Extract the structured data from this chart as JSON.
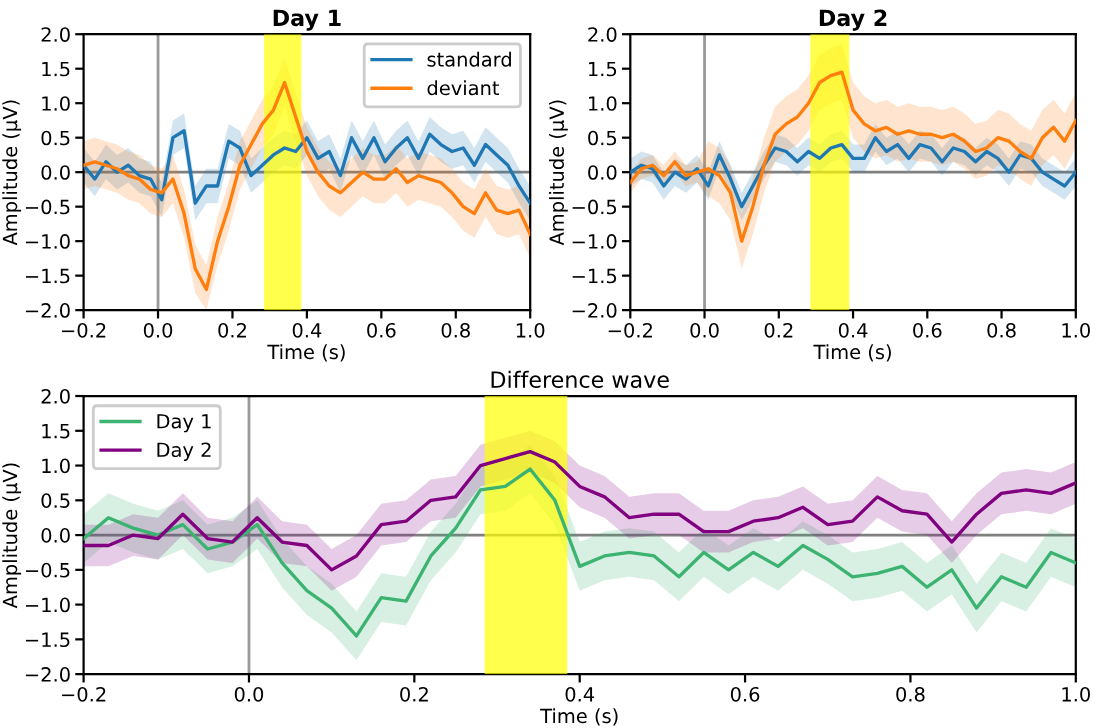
{
  "chart_data": [
    {
      "type": "line",
      "title": "Day 1",
      "xlabel": "Time (s)",
      "ylabel": "Amplitude (µV)",
      "xlim": [
        -0.2,
        1.0
      ],
      "ylim": [
        -2.0,
        2.0
      ],
      "xticks": [
        {
          "value": -0.2,
          "label": "−0.2"
        },
        {
          "value": 0,
          "label": "0.0"
        },
        0.2,
        0.4,
        0.6,
        0.8,
        {
          "value": 1,
          "label": "1.0"
        }
      ],
      "yticks": [
        {
          "value": -2.0,
          "label": "−2.0"
        },
        {
          "value": -1.5,
          "label": "−1.5"
        },
        {
          "value": -1.0,
          "label": "−1.0"
        },
        {
          "value": -0.5,
          "label": "−0.5"
        },
        {
          "value": 0,
          "label": "0.0"
        },
        {
          "value": 0.5,
          "label": "0.5"
        },
        {
          "value": 1,
          "label": "1.0"
        },
        {
          "value": 1.5,
          "label": "1.5"
        },
        {
          "value": 2,
          "label": "2.0"
        }
      ],
      "grid": false,
      "legend": "top right",
      "x": [
        -0.2,
        -0.17,
        -0.14,
        -0.11,
        -0.08,
        -0.05,
        -0.02,
        0.01,
        0.04,
        0.07,
        0.1,
        0.13,
        0.16,
        0.19,
        0.22,
        0.25,
        0.28,
        0.31,
        0.34,
        0.37,
        0.4,
        0.43,
        0.46,
        0.49,
        0.52,
        0.55,
        0.58,
        0.61,
        0.64,
        0.67,
        0.7,
        0.73,
        0.76,
        0.79,
        0.82,
        0.85,
        0.88,
        0.91,
        0.94,
        0.97,
        1.0
      ],
      "bands": [
        {
          "axis": "x",
          "from": 0.285,
          "to": 0.385,
          "color": "#ffff00"
        }
      ],
      "ref_lines": [
        {
          "axis": "x",
          "value": 0.0,
          "color": "#999999"
        },
        {
          "axis": "y",
          "value": 0.0,
          "color": "#808080"
        }
      ],
      "series": [
        {
          "name": "standard",
          "color": "#1f77b4",
          "values": [
            0.1,
            -0.1,
            0.15,
            0.0,
            0.1,
            -0.05,
            -0.1,
            -0.4,
            0.5,
            0.6,
            -0.45,
            -0.2,
            -0.2,
            0.45,
            0.35,
            -0.05,
            0.1,
            0.25,
            0.35,
            0.3,
            0.5,
            0.2,
            0.3,
            -0.05,
            0.5,
            0.2,
            0.5,
            0.15,
            0.35,
            0.5,
            0.2,
            0.55,
            0.4,
            0.3,
            0.35,
            0.1,
            0.4,
            0.25,
            0.1,
            -0.2,
            -0.45
          ],
          "lower": [
            -0.15,
            -0.35,
            -0.1,
            -0.25,
            -0.15,
            -0.3,
            -0.35,
            -0.65,
            0.25,
            0.35,
            -0.7,
            -0.45,
            -0.45,
            0.2,
            0.1,
            -0.3,
            -0.15,
            0.0,
            0.1,
            0.05,
            0.25,
            -0.05,
            0.05,
            -0.3,
            0.25,
            -0.05,
            0.25,
            -0.1,
            0.1,
            0.25,
            -0.05,
            0.3,
            0.15,
            0.05,
            0.1,
            -0.15,
            0.15,
            0.0,
            -0.15,
            -0.45,
            -0.7
          ],
          "upper": [
            0.35,
            0.15,
            0.4,
            0.25,
            0.35,
            0.2,
            0.15,
            -0.15,
            0.75,
            0.85,
            -0.2,
            0.05,
            0.05,
            0.7,
            0.6,
            0.2,
            0.35,
            0.5,
            0.6,
            0.55,
            0.75,
            0.45,
            0.55,
            0.2,
            0.75,
            0.45,
            0.75,
            0.4,
            0.6,
            0.75,
            0.45,
            0.8,
            0.65,
            0.55,
            0.6,
            0.35,
            0.65,
            0.5,
            0.35,
            0.05,
            -0.2
          ]
        },
        {
          "name": "deviant",
          "color": "#ff7f0e",
          "values": [
            0.1,
            0.15,
            0.1,
            0.05,
            -0.05,
            -0.1,
            -0.25,
            -0.3,
            -0.1,
            -0.6,
            -1.4,
            -1.7,
            -1.0,
            -0.5,
            0.1,
            0.4,
            0.7,
            0.9,
            1.3,
            0.8,
            0.3,
            0.0,
            -0.2,
            -0.3,
            -0.15,
            0.0,
            -0.1,
            -0.1,
            0.05,
            -0.15,
            -0.05,
            -0.1,
            -0.15,
            -0.3,
            -0.5,
            -0.6,
            -0.3,
            -0.55,
            -0.6,
            -0.55,
            -0.9
          ],
          "lower": [
            -0.25,
            -0.2,
            -0.25,
            -0.3,
            -0.4,
            -0.45,
            -0.6,
            -0.65,
            -0.45,
            -0.95,
            -1.75,
            -2.0,
            -1.35,
            -0.85,
            -0.25,
            0.05,
            0.35,
            0.55,
            0.95,
            0.45,
            -0.05,
            -0.35,
            -0.55,
            -0.65,
            -0.5,
            -0.35,
            -0.45,
            -0.45,
            -0.3,
            -0.5,
            -0.4,
            -0.45,
            -0.5,
            -0.65,
            -0.85,
            -0.95,
            -0.65,
            -0.9,
            -0.95,
            -0.9,
            -1.25
          ],
          "upper": [
            0.45,
            0.5,
            0.45,
            0.4,
            0.3,
            0.25,
            0.1,
            0.05,
            0.25,
            -0.25,
            -1.05,
            -1.35,
            -0.65,
            -0.15,
            0.45,
            0.75,
            1.05,
            1.25,
            1.65,
            1.15,
            0.65,
            0.35,
            0.15,
            0.05,
            0.2,
            0.35,
            0.25,
            0.25,
            0.4,
            0.2,
            0.3,
            0.25,
            0.2,
            0.05,
            -0.15,
            -0.25,
            0.05,
            -0.2,
            -0.25,
            -0.2,
            -0.55
          ]
        }
      ]
    },
    {
      "type": "line",
      "title": "Day 2",
      "xlabel": "Time (s)",
      "ylabel": "Amplitude (µV)",
      "xlim": [
        -0.2,
        1.0
      ],
      "ylim": [
        -2.0,
        2.0
      ],
      "xticks": [
        {
          "value": -0.2,
          "label": "−0.2"
        },
        {
          "value": 0,
          "label": "0.0"
        },
        0.2,
        0.4,
        0.6,
        0.8,
        {
          "value": 1,
          "label": "1.0"
        }
      ],
      "yticks": [
        {
          "value": -2.0,
          "label": "−2.0"
        },
        {
          "value": -1.5,
          "label": "−1.5"
        },
        {
          "value": -1.0,
          "label": "−1.0"
        },
        {
          "value": -0.5,
          "label": "−0.5"
        },
        {
          "value": 0,
          "label": "0.0"
        },
        {
          "value": 0.5,
          "label": "0.5"
        },
        {
          "value": 1,
          "label": "1.0"
        },
        {
          "value": 1.5,
          "label": "1.5"
        },
        {
          "value": 2,
          "label": "2.0"
        }
      ],
      "grid": false,
      "x": [
        -0.2,
        -0.17,
        -0.14,
        -0.11,
        -0.08,
        -0.05,
        -0.02,
        0.01,
        0.04,
        0.07,
        0.1,
        0.13,
        0.16,
        0.19,
        0.22,
        0.25,
        0.28,
        0.31,
        0.34,
        0.37,
        0.4,
        0.43,
        0.46,
        0.49,
        0.52,
        0.55,
        0.58,
        0.61,
        0.64,
        0.67,
        0.7,
        0.73,
        0.76,
        0.79,
        0.82,
        0.85,
        0.88,
        0.91,
        0.94,
        0.97,
        1.0
      ],
      "bands": [
        {
          "axis": "x",
          "from": 0.285,
          "to": 0.39,
          "color": "#ffff00"
        }
      ],
      "ref_lines": [
        {
          "axis": "x",
          "value": 0.0,
          "color": "#999999"
        },
        {
          "axis": "y",
          "value": 0.0,
          "color": "#808080"
        }
      ],
      "series": [
        {
          "color": "#1f77b4",
          "values": [
            0.0,
            0.1,
            0.05,
            -0.2,
            0.0,
            -0.1,
            0.05,
            -0.2,
            0.25,
            -0.1,
            -0.5,
            -0.2,
            0.1,
            0.35,
            0.3,
            0.15,
            0.3,
            0.2,
            0.35,
            0.4,
            0.2,
            0.2,
            0.5,
            0.3,
            0.4,
            0.2,
            0.4,
            0.35,
            0.15,
            0.35,
            0.3,
            0.15,
            0.3,
            0.2,
            0.0,
            0.25,
            0.2,
            0.0,
            -0.1,
            -0.2,
            0.0
          ],
          "lower": [
            -0.2,
            -0.1,
            -0.15,
            -0.4,
            -0.2,
            -0.3,
            -0.15,
            -0.4,
            0.05,
            -0.3,
            -0.7,
            -0.4,
            -0.1,
            0.15,
            0.1,
            -0.05,
            0.1,
            0.0,
            0.15,
            0.2,
            0.0,
            0.0,
            0.3,
            0.1,
            0.2,
            0.0,
            0.2,
            0.15,
            -0.05,
            0.15,
            0.1,
            -0.05,
            0.1,
            0.0,
            -0.2,
            0.05,
            0.0,
            -0.2,
            -0.3,
            -0.4,
            -0.2
          ],
          "upper": [
            0.2,
            0.3,
            0.25,
            0.0,
            0.2,
            0.1,
            0.25,
            0.0,
            0.45,
            0.1,
            -0.3,
            0.0,
            0.3,
            0.55,
            0.5,
            0.35,
            0.5,
            0.4,
            0.55,
            0.6,
            0.4,
            0.4,
            0.7,
            0.5,
            0.6,
            0.4,
            0.6,
            0.55,
            0.35,
            0.55,
            0.5,
            0.35,
            0.5,
            0.4,
            0.2,
            0.45,
            0.4,
            0.2,
            0.1,
            0.0,
            0.2
          ]
        },
        {
          "color": "#ff7f0e",
          "values": [
            -0.15,
            0.05,
            0.1,
            -0.05,
            0.15,
            -0.05,
            0.0,
            0.05,
            -0.05,
            -0.3,
            -1.0,
            -0.5,
            0.1,
            0.55,
            0.7,
            0.8,
            1.0,
            1.3,
            1.4,
            1.45,
            0.9,
            0.7,
            0.6,
            0.65,
            0.55,
            0.6,
            0.55,
            0.55,
            0.5,
            0.55,
            0.45,
            0.3,
            0.35,
            0.5,
            0.45,
            0.3,
            0.2,
            0.5,
            0.65,
            0.45,
            0.75
          ],
          "lower": [
            -0.3,
            -0.1,
            -0.05,
            -0.2,
            0.0,
            -0.2,
            -0.15,
            -0.35,
            -0.45,
            -0.7,
            -1.4,
            -0.9,
            -0.3,
            0.15,
            0.3,
            0.4,
            0.6,
            0.9,
            1.0,
            1.05,
            0.5,
            0.3,
            0.2,
            0.25,
            0.15,
            0.2,
            0.15,
            0.15,
            0.1,
            0.15,
            0.05,
            -0.1,
            -0.05,
            0.1,
            0.05,
            -0.1,
            -0.2,
            0.1,
            0.25,
            0.05,
            0.35
          ],
          "upper": [
            0.0,
            0.2,
            0.25,
            0.1,
            0.3,
            0.1,
            0.15,
            0.45,
            0.35,
            0.1,
            -0.6,
            -0.1,
            0.5,
            0.95,
            1.1,
            1.2,
            1.4,
            1.7,
            1.8,
            1.85,
            1.3,
            1.1,
            1.0,
            1.05,
            0.95,
            1.0,
            0.95,
            0.95,
            0.9,
            0.95,
            0.85,
            0.7,
            0.75,
            0.9,
            0.85,
            0.7,
            0.6,
            0.9,
            1.05,
            0.85,
            1.15
          ]
        }
      ]
    },
    {
      "type": "line",
      "title": "Difference wave",
      "xlabel": "Time (s)",
      "ylabel": "Amplitude (µV)",
      "xlim": [
        -0.2,
        1.0
      ],
      "ylim": [
        -2.0,
        2.0
      ],
      "xticks": [
        {
          "value": -0.2,
          "label": "−0.2"
        },
        {
          "value": 0,
          "label": "0.0"
        },
        0.2,
        0.4,
        0.6,
        0.8,
        {
          "value": 1,
          "label": "1.0"
        }
      ],
      "yticks": [
        {
          "value": -2.0,
          "label": "−2.0"
        },
        {
          "value": -1.5,
          "label": "−1.5"
        },
        {
          "value": -1.0,
          "label": "−1.0"
        },
        {
          "value": -0.5,
          "label": "−0.5"
        },
        {
          "value": 0,
          "label": "0.0"
        },
        {
          "value": 0.5,
          "label": "0.5"
        },
        {
          "value": 1,
          "label": "1.0"
        },
        {
          "value": 1.5,
          "label": "1.5"
        },
        {
          "value": 2,
          "label": "2.0"
        }
      ],
      "grid": false,
      "legend": "top left",
      "x": [
        -0.2,
        -0.17,
        -0.14,
        -0.11,
        -0.08,
        -0.05,
        -0.02,
        0.01,
        0.04,
        0.07,
        0.1,
        0.13,
        0.16,
        0.19,
        0.22,
        0.25,
        0.28,
        0.31,
        0.34,
        0.37,
        0.4,
        0.43,
        0.46,
        0.49,
        0.52,
        0.55,
        0.58,
        0.61,
        0.64,
        0.67,
        0.7,
        0.73,
        0.76,
        0.79,
        0.82,
        0.85,
        0.88,
        0.91,
        0.94,
        0.97,
        1.0
      ],
      "bands": [
        {
          "axis": "x",
          "from": 0.285,
          "to": 0.385,
          "color": "#ffff00"
        }
      ],
      "ref_lines": [
        {
          "axis": "x",
          "value": 0.0,
          "color": "#999999"
        },
        {
          "axis": "y",
          "value": 0.0,
          "color": "#808080"
        }
      ],
      "series": [
        {
          "name": "Day 1",
          "color": "#3cb371",
          "values": [
            -0.05,
            0.25,
            0.1,
            0.0,
            0.15,
            -0.2,
            -0.1,
            0.15,
            -0.4,
            -0.8,
            -1.05,
            -1.45,
            -0.9,
            -0.95,
            -0.3,
            0.1,
            0.65,
            0.7,
            0.95,
            0.5,
            -0.45,
            -0.3,
            -0.25,
            -0.3,
            -0.6,
            -0.25,
            -0.5,
            -0.25,
            -0.45,
            -0.15,
            -0.35,
            -0.6,
            -0.55,
            -0.45,
            -0.75,
            -0.5,
            -1.05,
            -0.6,
            -0.75,
            -0.25,
            -0.4
          ],
          "lower": [
            -0.4,
            -0.1,
            -0.25,
            -0.35,
            -0.2,
            -0.55,
            -0.45,
            -0.2,
            -0.75,
            -1.15,
            -1.4,
            -1.8,
            -1.25,
            -1.3,
            -0.65,
            -0.25,
            0.3,
            0.35,
            0.6,
            0.15,
            -0.8,
            -0.65,
            -0.6,
            -0.65,
            -0.95,
            -0.6,
            -0.85,
            -0.6,
            -0.8,
            -0.5,
            -0.7,
            -0.95,
            -0.9,
            -0.8,
            -1.1,
            -0.85,
            -1.4,
            -0.95,
            -1.1,
            -0.6,
            -0.75
          ],
          "upper": [
            0.3,
            0.6,
            0.45,
            0.35,
            0.5,
            0.15,
            0.25,
            0.5,
            -0.05,
            -0.45,
            -0.7,
            -1.1,
            -0.55,
            -0.6,
            0.05,
            0.45,
            1.0,
            1.05,
            1.3,
            0.85,
            -0.1,
            0.05,
            0.1,
            0.05,
            -0.25,
            0.1,
            -0.15,
            0.1,
            -0.1,
            0.2,
            0.0,
            -0.25,
            -0.2,
            -0.1,
            -0.4,
            -0.15,
            -0.7,
            -0.25,
            -0.4,
            0.1,
            -0.05
          ]
        },
        {
          "name": "Day 2",
          "color": "#800080",
          "values": [
            -0.15,
            -0.15,
            0.0,
            -0.05,
            0.3,
            -0.05,
            -0.1,
            0.25,
            -0.1,
            -0.15,
            -0.5,
            -0.3,
            0.15,
            0.2,
            0.5,
            0.55,
            1.0,
            1.1,
            1.2,
            1.05,
            0.7,
            0.55,
            0.25,
            0.3,
            0.3,
            0.05,
            0.05,
            0.2,
            0.25,
            0.4,
            0.15,
            0.2,
            0.55,
            0.35,
            0.3,
            -0.1,
            0.3,
            0.6,
            0.65,
            0.6,
            0.75
          ],
          "lower": [
            -0.45,
            -0.45,
            -0.3,
            -0.35,
            0.0,
            -0.35,
            -0.4,
            -0.05,
            -0.4,
            -0.45,
            -0.8,
            -0.6,
            -0.15,
            -0.1,
            0.2,
            0.25,
            0.7,
            0.8,
            0.9,
            0.75,
            0.4,
            0.25,
            -0.05,
            0.0,
            0.0,
            -0.25,
            -0.25,
            -0.1,
            -0.05,
            0.1,
            -0.15,
            -0.1,
            0.25,
            0.05,
            0.0,
            -0.4,
            0.0,
            0.3,
            0.35,
            0.3,
            0.45
          ],
          "upper": [
            0.15,
            0.15,
            0.3,
            0.25,
            0.6,
            0.25,
            0.2,
            0.55,
            0.2,
            0.15,
            -0.2,
            0.0,
            0.45,
            0.5,
            0.8,
            0.85,
            1.3,
            1.4,
            1.5,
            1.35,
            1.0,
            0.85,
            0.55,
            0.6,
            0.6,
            0.35,
            0.35,
            0.5,
            0.55,
            0.7,
            0.45,
            0.5,
            0.85,
            0.65,
            0.6,
            0.2,
            0.6,
            0.9,
            0.95,
            0.9,
            1.05
          ]
        }
      ]
    }
  ]
}
